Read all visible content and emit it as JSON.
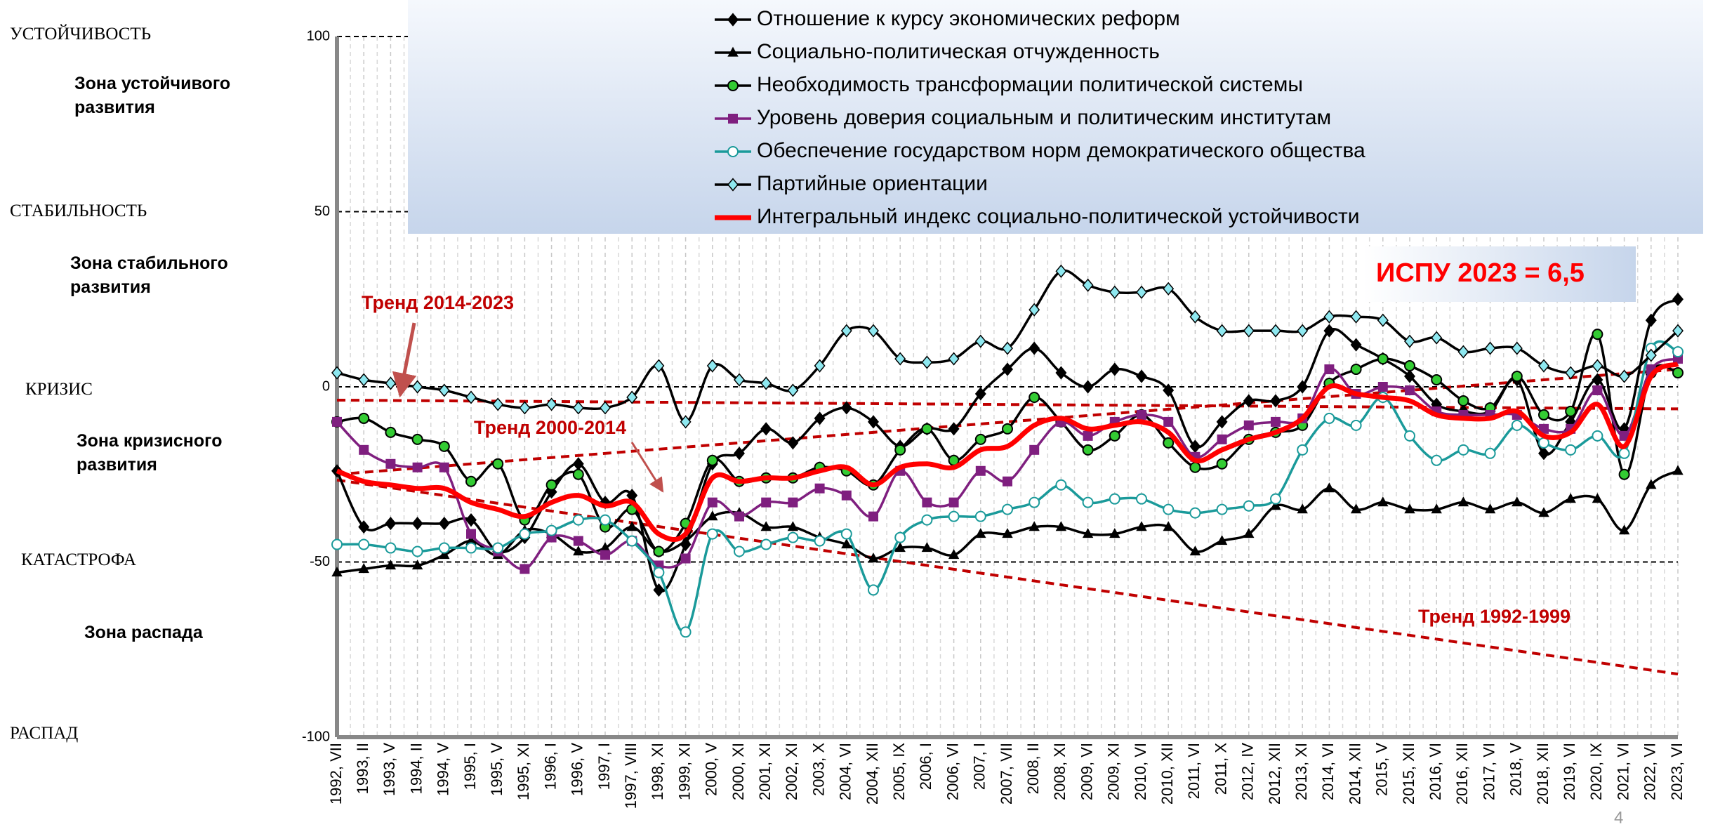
{
  "chart_data": {
    "type": "line",
    "categories": [
      "1992, VII",
      "1993, II",
      "1993, V",
      "1994, II",
      "1994, V",
      "1995, I",
      "1995, V",
      "1995, XI",
      "1996, I",
      "1996, V",
      "1997, I",
      "1997, VIII",
      "1998, XI",
      "1999, XI",
      "2000, V",
      "2000, XI",
      "2001, XI",
      "2002, XI",
      "2003, X",
      "2004, VI",
      "2004, XII",
      "2005, IX",
      "2006, I",
      "2006, VI",
      "2007, I",
      "2007, VII",
      "2008, II",
      "2008, XI",
      "2009, VI",
      "2009, XI",
      "2010, VI",
      "2010, XII",
      "2011, VI",
      "2011, X",
      "2012, IV",
      "2012, XII",
      "2013, XI",
      "2014, VI",
      "2014, XII",
      "2015, V",
      "2015, XII",
      "2016, VI",
      "2016, XII",
      "2017, VI",
      "2018, V",
      "2018, XII",
      "2019, VI",
      "2020, IX",
      "2021, VI",
      "2022, VI",
      "2023, VI"
    ],
    "series": [
      {
        "name": "Отношение к курсу экономических реформ",
        "color": "#000000",
        "marker": "diamond",
        "marker_color": "#000000",
        "values": [
          -24,
          -40,
          -39,
          -39,
          -39,
          -38,
          -47,
          -43,
          -30,
          -22,
          -33,
          -31,
          -58,
          -45,
          -22,
          -19,
          -12,
          -16,
          -9,
          -6,
          -10,
          -17,
          -12,
          -12,
          -2,
          5,
          11,
          4,
          0,
          5,
          3,
          -1,
          -17,
          -10,
          -4,
          -4,
          0,
          16,
          12,
          8,
          3,
          -5,
          -7,
          -7,
          2,
          -19,
          -10,
          2,
          -12,
          19,
          25
        ]
      },
      {
        "name": "Социально-политическая отчужденность",
        "color": "#000000",
        "marker": "triangle",
        "marker_color": "#000000",
        "values": [
          -53,
          -52,
          -51,
          -51,
          -48,
          -44,
          -48,
          -41,
          -42,
          -47,
          -46,
          -40,
          -47,
          -44,
          -37,
          -36,
          -40,
          -40,
          -43,
          -45,
          -49,
          -46,
          -46,
          -48,
          -42,
          -42,
          -40,
          -40,
          -42,
          -42,
          -40,
          -40,
          -47,
          -44,
          -42,
          -34,
          -35,
          -29,
          -35,
          -33,
          -35,
          -35,
          -33,
          -35,
          -33,
          -36,
          -32,
          -32,
          -41,
          -28,
          -24
        ]
      },
      {
        "name": "Необходимость трансформации политической системы",
        "color": "#000000",
        "marker": "circle",
        "marker_color": "#33cc33",
        "values": [
          -10,
          -9,
          -13,
          -15,
          -17,
          -27,
          -22,
          -38,
          -28,
          -25,
          -40,
          -35,
          -47,
          -39,
          -21,
          -27,
          -26,
          -26,
          -23,
          -24,
          -28,
          -18,
          -12,
          -21,
          -15,
          -12,
          -3,
          -10,
          -18,
          -14,
          -8,
          -16,
          -23,
          -22,
          -15,
          -13,
          -11,
          1,
          5,
          8,
          6,
          2,
          -4,
          -6,
          3,
          -8,
          -7,
          15,
          -25,
          4,
          4
        ]
      },
      {
        "name": "Уровень доверия социальным и политическим институтам",
        "color": "#7f1f7f",
        "marker": "square",
        "marker_color": "#7f1f7f",
        "values": [
          -10,
          -18,
          -22,
          -23,
          -23,
          -42,
          -47,
          -52,
          -43,
          -44,
          -48,
          -44,
          -51,
          -49,
          -33,
          -37,
          -33,
          -33,
          -29,
          -31,
          -37,
          -24,
          -33,
          -33,
          -24,
          -27,
          -18,
          -10,
          -14,
          -10,
          -8,
          -10,
          -20,
          -15,
          -11,
          -10,
          -9,
          5,
          -2,
          0,
          -1,
          -7,
          -8,
          -8,
          -8,
          -12,
          -12,
          -1,
          -14,
          5,
          8
        ]
      },
      {
        "name": "Обеспечение государством норм демократического общества",
        "color": "#1a9a9a",
        "marker": "circle",
        "marker_color": "#ffffff",
        "values": [
          -45,
          -45,
          -46,
          -47,
          -46,
          -46,
          -46,
          -42,
          -41,
          -38,
          -38,
          -44,
          -53,
          -70,
          -42,
          -47,
          -45,
          -43,
          -44,
          -42,
          -58,
          -43,
          -38,
          -37,
          -37,
          -35,
          -33,
          -28,
          -33,
          -32,
          -32,
          -35,
          -36,
          -35,
          -34,
          -32,
          -18,
          -9,
          -11,
          -3,
          -14,
          -21,
          -18,
          -19,
          -11,
          -16,
          -18,
          -14,
          -19,
          11,
          10
        ]
      },
      {
        "name": "Партийные ориентации",
        "color": "#000000",
        "marker": "diamond",
        "marker_color": "#8ee8f0",
        "values": [
          4,
          2,
          1,
          0,
          -1,
          -3,
          -5,
          -6,
          -5,
          -6,
          -6,
          -3,
          6,
          -10,
          6,
          2,
          1,
          -1,
          6,
          16,
          16,
          8,
          7,
          8,
          13,
          11,
          22,
          33,
          29,
          27,
          27,
          28,
          20,
          16,
          16,
          16,
          16,
          20,
          20,
          19,
          13,
          14,
          10,
          11,
          11,
          6,
          4,
          6,
          3,
          9,
          16
        ]
      },
      {
        "name": "Интегральный индекс социально-политической устойчивости",
        "color": "#ff0000",
        "marker": "none",
        "marker_color": "#ff0000",
        "values": [
          -24,
          -27,
          -28,
          -29,
          -29,
          -33,
          -35,
          -37,
          -33,
          -31,
          -34,
          -33,
          -42,
          -42,
          -26,
          -27,
          -26,
          -26,
          -24,
          -23,
          -28,
          -23,
          -22,
          -23,
          -18,
          -17,
          -11,
          -9,
          -12,
          -11,
          -10,
          -13,
          -21,
          -18,
          -15,
          -13,
          -9,
          0,
          -2,
          -3,
          -4,
          -8,
          -9,
          -9,
          -7,
          -14,
          -13,
          -5,
          -17,
          3,
          6.5
        ]
      }
    ],
    "trend_lines": [
      {
        "label": "Тренд 1992-1999",
        "color": "#c00000",
        "values": [
          -26.6,
          -82
        ]
      },
      {
        "label": "Тренд 2000-2014",
        "color": "#c00000",
        "values": [
          -25,
          5
        ]
      },
      {
        "label": "Тренд 2014-2023",
        "color": "#c00000",
        "values": [
          -3.8,
          -6.3
        ]
      }
    ],
    "annotation": "ИСПУ 2023 = 6,5",
    "side_labels": [
      "УСТОЙЧИВОСТЬ",
      "Зона устойчивого развития",
      "СТАБИЛЬНОСТЬ",
      "Зона стабильного развития",
      "КРИЗИС",
      "Зона кризисного развития",
      "КАТАСТРОФА",
      "Зона распада",
      "РАСПАД"
    ],
    "page_number": "4",
    "ylim": [
      -100,
      100
    ],
    "yticks": [
      100,
      50,
      0,
      -50,
      -100
    ],
    "grid": true
  }
}
